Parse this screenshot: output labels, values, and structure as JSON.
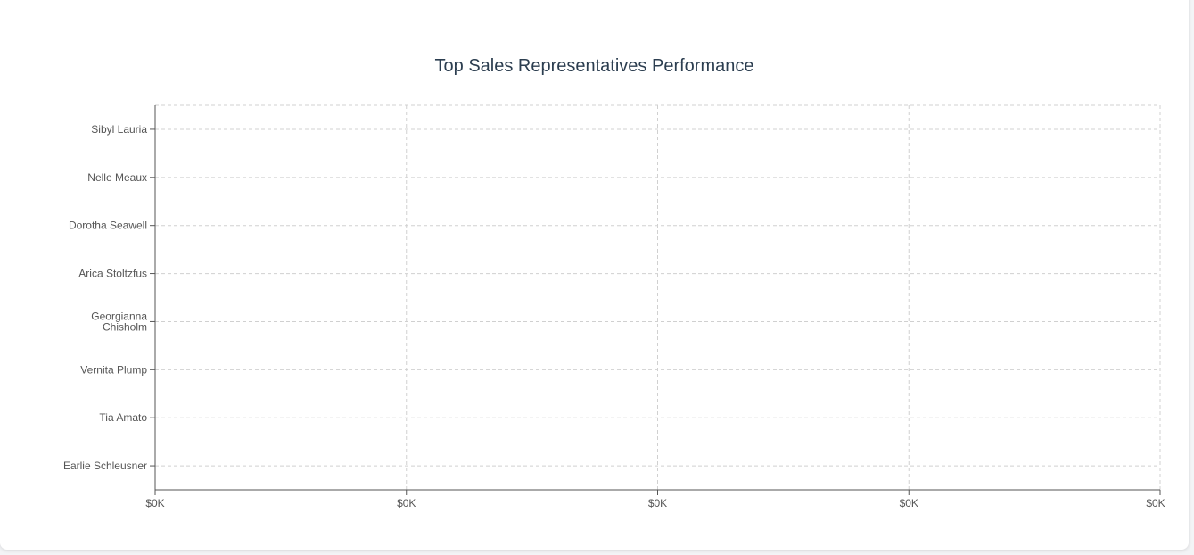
{
  "chart_data": {
    "type": "bar",
    "orientation": "horizontal",
    "title": "Top Sales Representatives Performance",
    "categories": [
      "Sibyl Lauria",
      "Nelle Meaux",
      "Dorotha Seawell",
      "Arica Stoltzfus",
      "Georgianna Chisholm",
      "Vernita Plump",
      "Tia Amato",
      "Earlie Schleusner"
    ],
    "values": [
      0,
      0,
      0,
      0,
      0,
      0,
      0,
      0
    ],
    "x_ticks": [
      "$0K",
      "$0K",
      "$0K",
      "$0K",
      "$0K"
    ],
    "xlabel": "",
    "ylabel": "",
    "grid": true,
    "colors": {
      "grid": "#d0d0d0",
      "axis": "#555555",
      "label": "#555555",
      "title": "#2c3e50"
    }
  }
}
